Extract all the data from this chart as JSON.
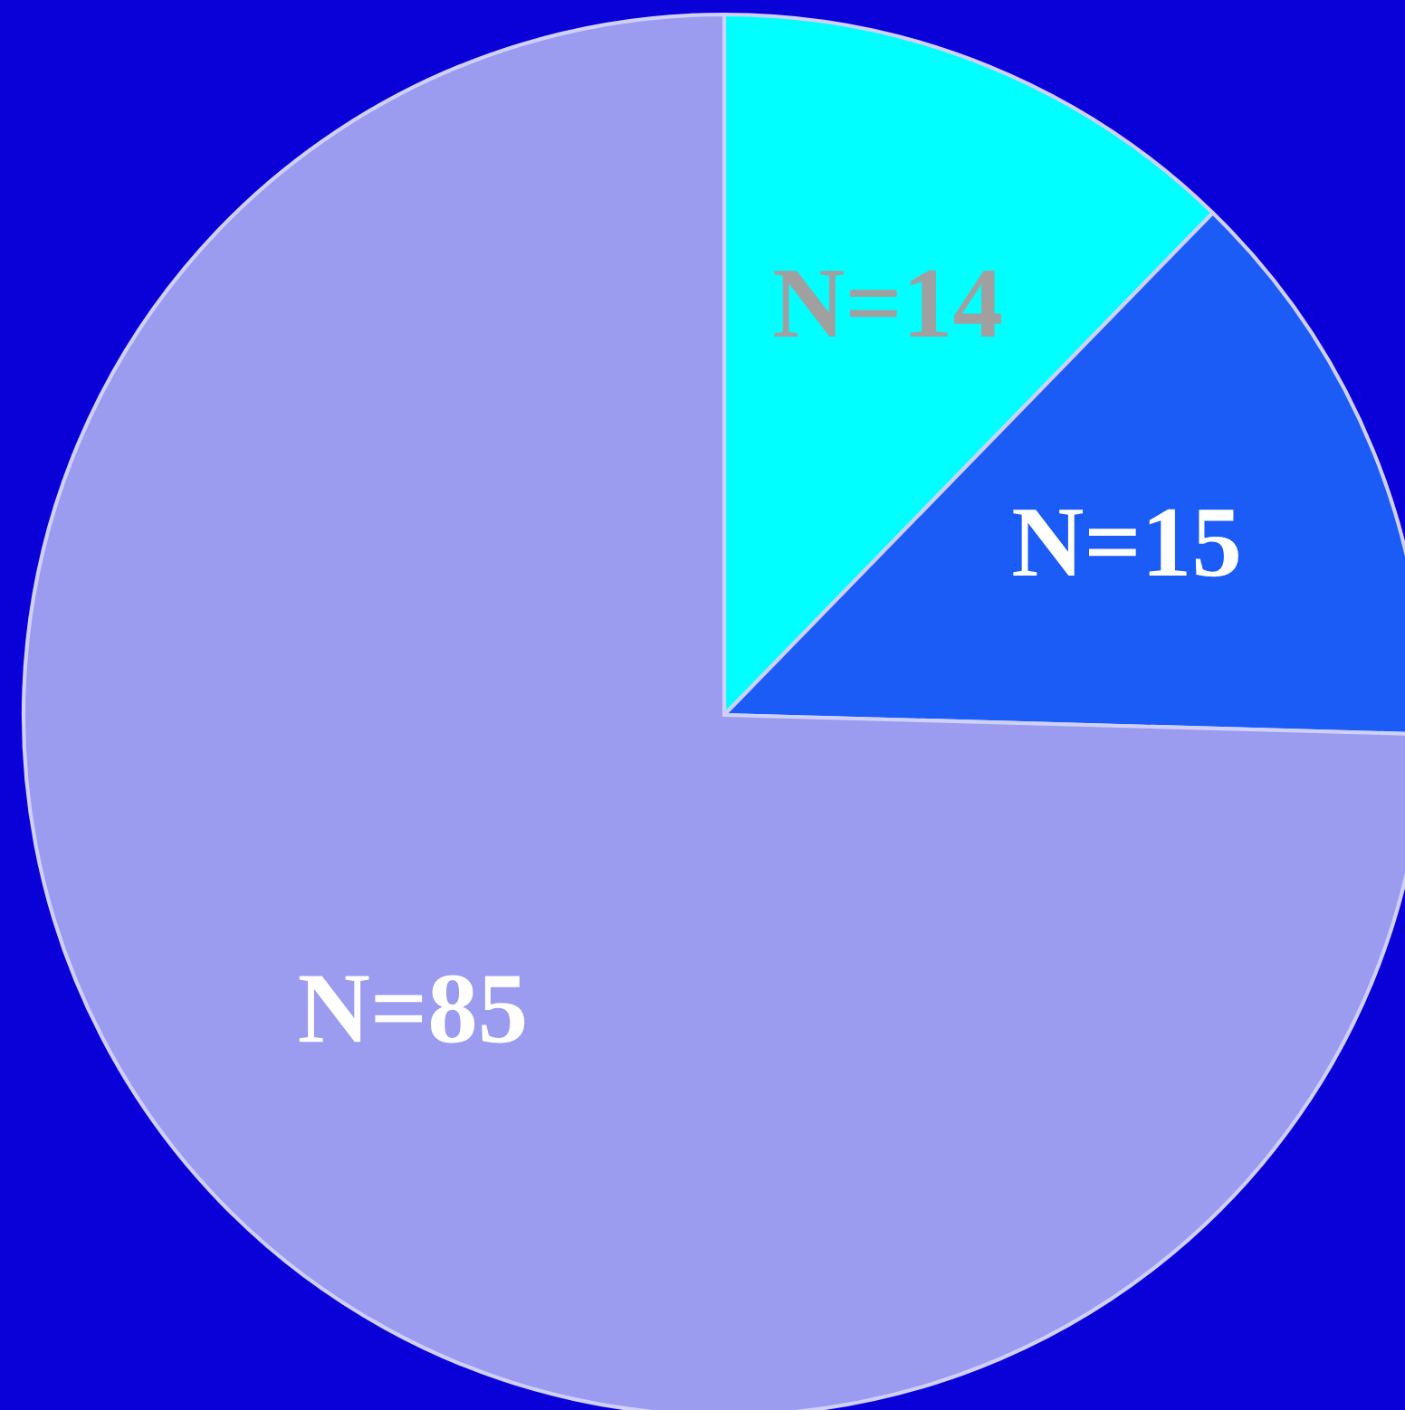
{
  "chart_data": {
    "type": "pie",
    "categories": [
      "N=14",
      "N=15",
      "N=85"
    ],
    "values": [
      14,
      15,
      85
    ],
    "colors": [
      "#00ffff",
      "#1a5cf5",
      "#9b9bf0"
    ]
  }
}
